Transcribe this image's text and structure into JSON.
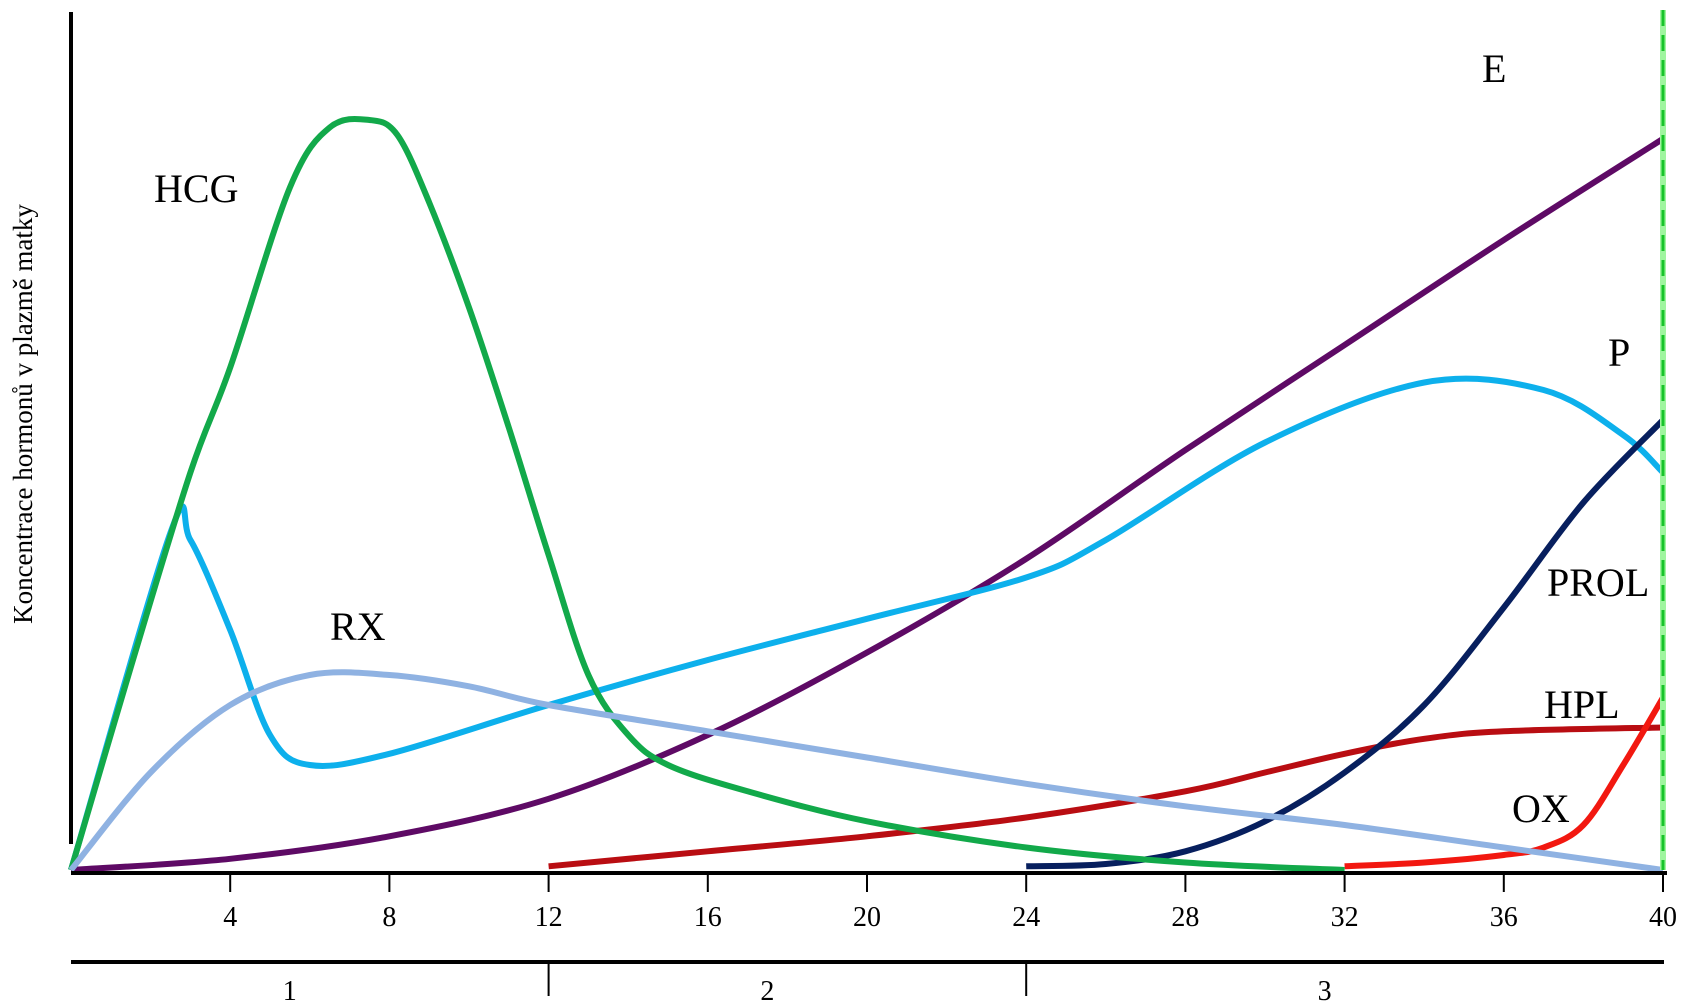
{
  "chart_data": {
    "type": "line",
    "title": "",
    "xlabel": "",
    "ylabel": "Koncentrace hormonů v plazmě matky",
    "xlim": [
      0,
      40
    ],
    "ylim": [
      0,
      100
    ],
    "x_ticks": [
      "4",
      "8",
      "12",
      "16",
      "20",
      "24",
      "28",
      "32",
      "36",
      "40"
    ],
    "grid": false,
    "legend": "none",
    "trimesters": [
      {
        "label": "1",
        "start": 0,
        "end": 12
      },
      {
        "label": "2",
        "start": 12,
        "end": 24
      },
      {
        "label": "3",
        "start": 24,
        "end": 40
      }
    ],
    "delivery_marker_x": 40,
    "series": [
      {
        "name": "HCG",
        "color": "#12a94a",
        "x": [
          0,
          1.5,
          3,
          4,
          5.5,
          6.5,
          7.5,
          8.2,
          9,
          10,
          11,
          12,
          13,
          14,
          15,
          17,
          20,
          24,
          28,
          32
        ],
        "y": [
          0,
          27,
          53,
          67,
          91,
          99,
          100,
          98,
          89,
          75,
          59,
          42,
          26,
          18,
          14,
          10.5,
          6.5,
          3,
          1,
          0
        ]
      },
      {
        "name": "P",
        "color": "#0db0ec",
        "x": [
          0,
          2.5,
          3,
          4,
          5,
          6,
          8,
          12,
          16,
          20,
          24,
          26,
          30,
          34,
          37,
          39,
          40
        ],
        "y": [
          0,
          45,
          44,
          32,
          18,
          14,
          15.5,
          22,
          28,
          33.5,
          39,
          44,
          57,
          65,
          64,
          58,
          53
        ]
      },
      {
        "name": "RX",
        "color": "#8fb2e2",
        "x": [
          0,
          2,
          4,
          6,
          8,
          10,
          12,
          16,
          20,
          24,
          28,
          32,
          36,
          40
        ],
        "y": [
          0,
          13,
          22,
          26,
          26,
          24.5,
          22,
          18.5,
          15,
          11.5,
          8.5,
          6,
          3,
          0
        ]
      },
      {
        "name": "E",
        "color": "#5e0a65",
        "x": [
          0,
          4,
          8,
          12,
          16,
          20,
          24,
          28,
          32,
          36,
          40
        ],
        "y": [
          0,
          1.5,
          4.5,
          9.5,
          18,
          29,
          41.5,
          56,
          70,
          84,
          97.5
        ]
      },
      {
        "name": "HPL",
        "color": "#b90d12",
        "x": [
          12,
          16,
          20,
          24,
          28,
          30,
          32,
          34,
          36,
          40
        ],
        "y": [
          0.5,
          2.5,
          4.5,
          7,
          10.5,
          13,
          15.5,
          17.5,
          18.5,
          19
        ]
      },
      {
        "name": "PROL",
        "color": "#071f5e",
        "x": [
          24,
          26,
          28,
          30,
          32,
          34,
          36,
          38,
          40
        ],
        "y": [
          0.5,
          0.8,
          2.5,
          6.5,
          13,
          22,
          35,
          49,
          60
        ]
      },
      {
        "name": "OX",
        "color": "#f21810",
        "x": [
          32,
          34,
          36,
          37,
          38,
          39,
          40
        ],
        "y": [
          0.5,
          1,
          2,
          3,
          6,
          14,
          23
        ]
      }
    ],
    "annotations": [
      {
        "text": "HCG",
        "series": "HCG"
      },
      {
        "text": "E",
        "series": "E"
      },
      {
        "text": "P",
        "series": "P"
      },
      {
        "text": "RX",
        "series": "RX"
      },
      {
        "text": "PROL",
        "series": "PROL"
      },
      {
        "text": "HPL",
        "series": "HPL"
      },
      {
        "text": "OX",
        "series": "OX"
      }
    ]
  }
}
